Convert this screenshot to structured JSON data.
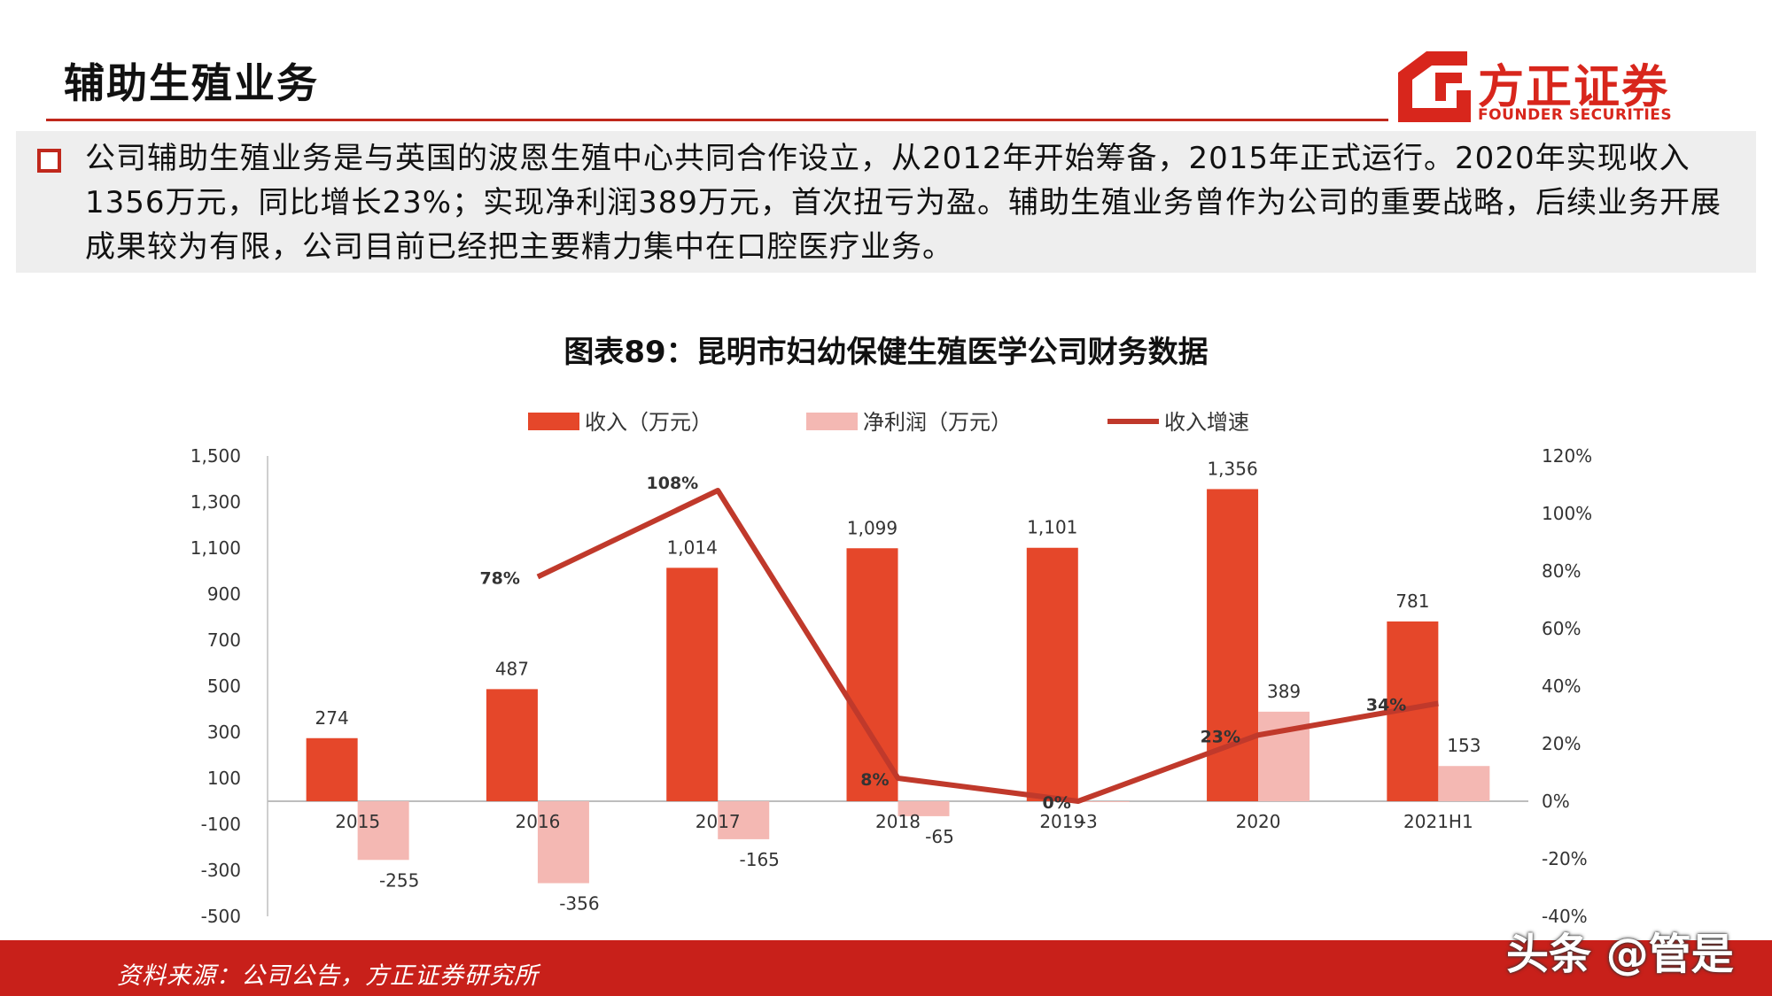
{
  "header": {
    "title": "辅助生殖业务",
    "logo_main": "方正证券",
    "logo_sub": "FOUNDER SECURITIES"
  },
  "summary": {
    "text": "公司辅助生殖业务是与英国的波恩生殖中心共同合作设立，从2012年开始筹备，2015年正式运行。2020年实现收入1356万元，同比增长23%；实现净利润389万元，首次扭亏为盈。辅助生殖业务曾作为公司的重要战略，后续业务开展成果较为有限，公司目前已经把主要精力集中在口腔医疗业务。"
  },
  "chart_data": {
    "type": "bar",
    "title": "图表89：昆明市妇幼保健生殖医学公司财务数据",
    "categories": [
      "2015",
      "2016",
      "2017",
      "2018",
      "2019",
      "2020",
      "2021H1"
    ],
    "series": [
      {
        "name": "收入（万元）",
        "type": "bar",
        "axis": "left",
        "color": "#e5472a",
        "values": [
          274,
          487,
          1014,
          1099,
          1101,
          1356,
          781
        ],
        "labels": [
          "274",
          "487",
          "1,014",
          "1,099",
          "1,101",
          "1,356",
          "781"
        ]
      },
      {
        "name": "净利润（万元）",
        "type": "bar",
        "axis": "left",
        "color": "#f4b8b3",
        "values": [
          -255,
          -356,
          -165,
          -65,
          -3,
          389,
          153
        ],
        "labels": [
          "-255",
          "-356",
          "-165",
          "-65",
          "-3",
          "389",
          "153"
        ]
      },
      {
        "name": "收入增速",
        "type": "line",
        "axis": "right",
        "color": "#c0392b",
        "values": [
          null,
          78,
          108,
          8,
          0,
          23,
          34
        ],
        "labels": [
          "",
          "78%",
          "108%",
          "8%",
          "0%",
          "23%",
          "34%"
        ]
      }
    ],
    "y_left": {
      "min": -500,
      "max": 1500,
      "ticks": [
        "1,500",
        "1,300",
        "1,100",
        "900",
        "700",
        "500",
        "300",
        "100",
        "-100",
        "-300",
        "-500"
      ]
    },
    "y_right": {
      "min": -40,
      "max": 120,
      "ticks": [
        "120%",
        "100%",
        "80%",
        "60%",
        "40%",
        "20%",
        "0%",
        "-20%",
        "-40%"
      ]
    },
    "legend": "top-center",
    "grid": false
  },
  "footer": {
    "source": "资料来源：公司公告，方正证券研究所",
    "watermark": "头条 @管是"
  }
}
